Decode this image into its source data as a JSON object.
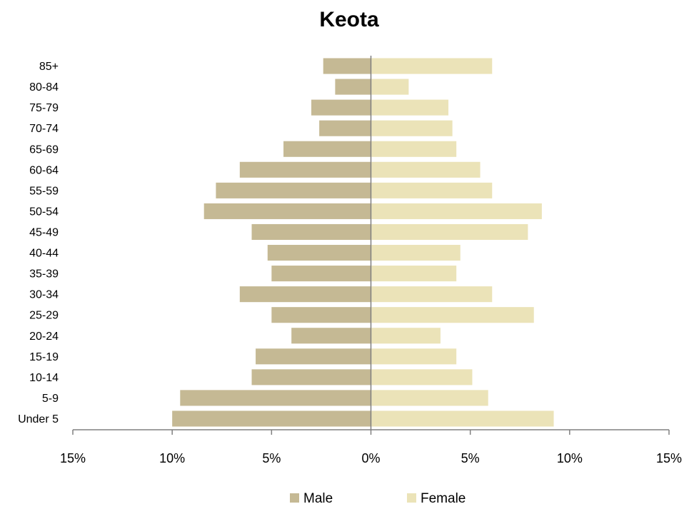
{
  "chart_data": {
    "type": "bar",
    "orientation": "horizontal",
    "title": "Keota",
    "categories": [
      "Under 5",
      "5-9",
      "10-14",
      "15-19",
      "20-24",
      "25-29",
      "30-34",
      "35-39",
      "40-44",
      "45-49",
      "50-54",
      "55-59",
      "60-64",
      "65-69",
      "70-74",
      "75-79",
      "80-84",
      "85+"
    ],
    "series": [
      {
        "name": "Male",
        "color": "#c5b994",
        "values": [
          10.0,
          9.6,
          6.0,
          5.8,
          4.0,
          5.0,
          6.6,
          5.0,
          5.2,
          6.0,
          8.4,
          7.8,
          6.6,
          4.4,
          2.6,
          3.0,
          1.8,
          2.4
        ]
      },
      {
        "name": "Female",
        "color": "#ebe3b8",
        "values": [
          9.2,
          5.9,
          5.1,
          4.3,
          3.5,
          8.2,
          6.1,
          4.3,
          4.5,
          7.9,
          8.6,
          6.1,
          5.5,
          4.3,
          4.1,
          3.9,
          1.9,
          6.1
        ]
      }
    ],
    "xlim": [
      -15,
      15
    ],
    "xticks": [
      -15,
      -10,
      -5,
      0,
      5,
      10,
      15
    ],
    "xtick_labels": [
      "15%",
      "10%",
      "5%",
      "0%",
      "5%",
      "10%",
      "15%"
    ],
    "legend_position": "bottom",
    "grid": false
  }
}
